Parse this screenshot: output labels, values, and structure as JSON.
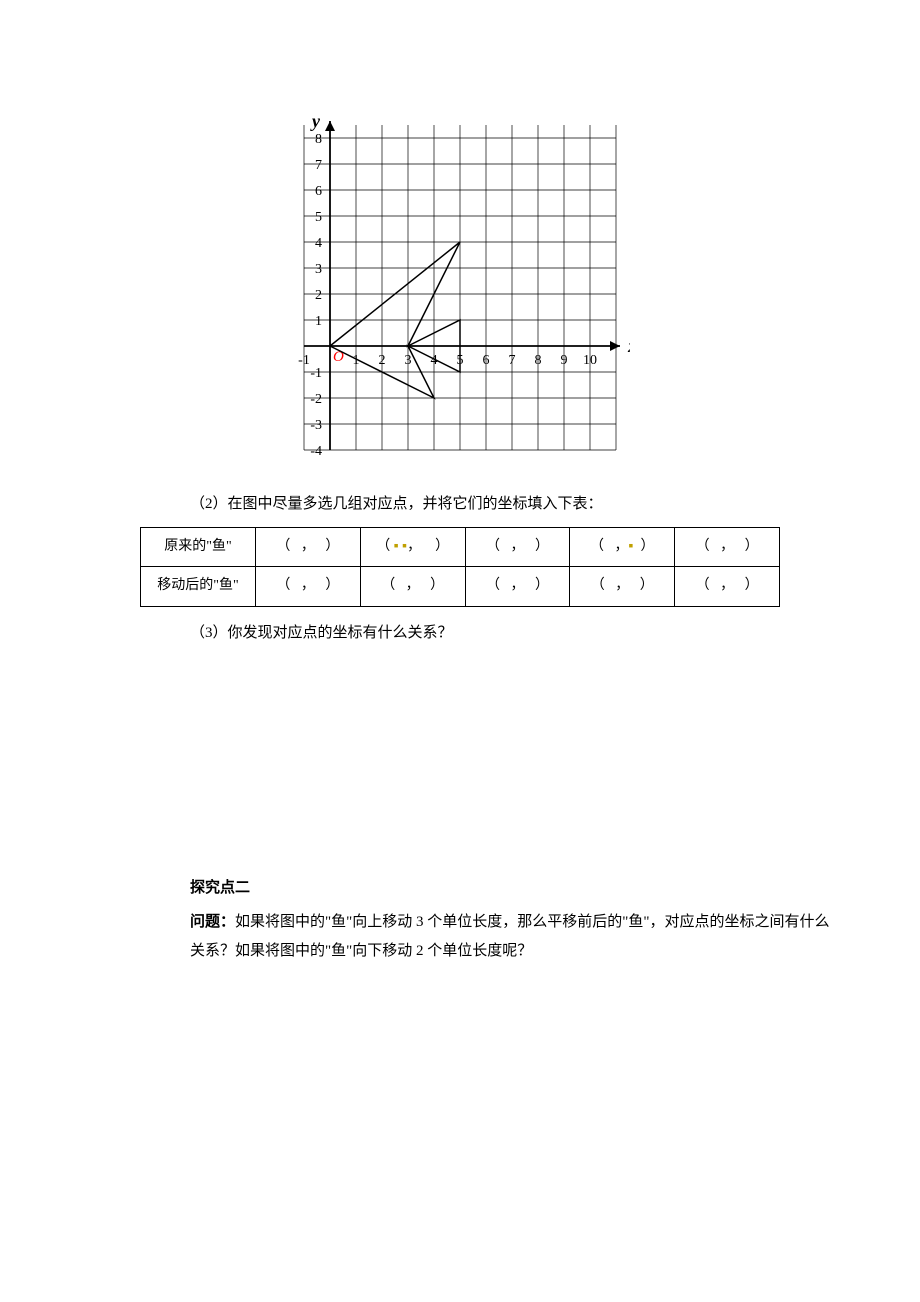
{
  "chart": {
    "type": "line",
    "xlim": [
      -1,
      11
    ],
    "ylim": [
      -4,
      8.5
    ],
    "grid_color": "#000000",
    "grid_width": 0.7,
    "axis_color": "#000000",
    "axis_width": 1.8,
    "background_color": "#ffffff",
    "origin_label": "O",
    "origin_color": "#ff0000",
    "axis_label_x": "x",
    "axis_label_y": "y",
    "axis_label_fontstyle": "italic",
    "axis_label_fontweight": "bold",
    "axis_label_fontsize": 18,
    "xtick_values": [
      -1,
      1,
      2,
      3,
      4,
      5,
      6,
      7,
      8,
      9,
      10
    ],
    "ytick_values": [
      -4,
      -3,
      -2,
      -1,
      1,
      2,
      3,
      4,
      5,
      6,
      7,
      8
    ],
    "tick_fontsize": 14,
    "fish_stroke": "#000000",
    "fish_stroke_width": 1.5,
    "fish_polyline": [
      [
        0,
        0
      ],
      [
        5,
        4
      ],
      [
        3,
        0
      ],
      [
        5,
        1
      ],
      [
        5,
        -1
      ],
      [
        3,
        0
      ],
      [
        4,
        -2
      ],
      [
        0,
        0
      ]
    ]
  },
  "q2_text": "（2）在图中尽量多选几组对应点，并将它们的坐标填入下表：",
  "table": {
    "row1_header": "原来的\"鱼\"",
    "row2_header": "移动后的\"鱼\"",
    "cell_open": "（",
    "cell_mid": "，",
    "cell_close": "）",
    "cell_open_half": "（",
    "cell_close_half": "）",
    "dot": "▪"
  },
  "q3_text": "（3）你发现对应点的坐标有什么关系？",
  "section2_title": "探究点二",
  "section2_q_label": "问题：",
  "section2_q_text1": "如果将图中的\"鱼\"向上移动 3 个单位长度，那么平移前后的\"鱼\"，对应点的坐标之间有什么关系？如果将图中的\"鱼\"向下移动 2 个单位长度呢？"
}
